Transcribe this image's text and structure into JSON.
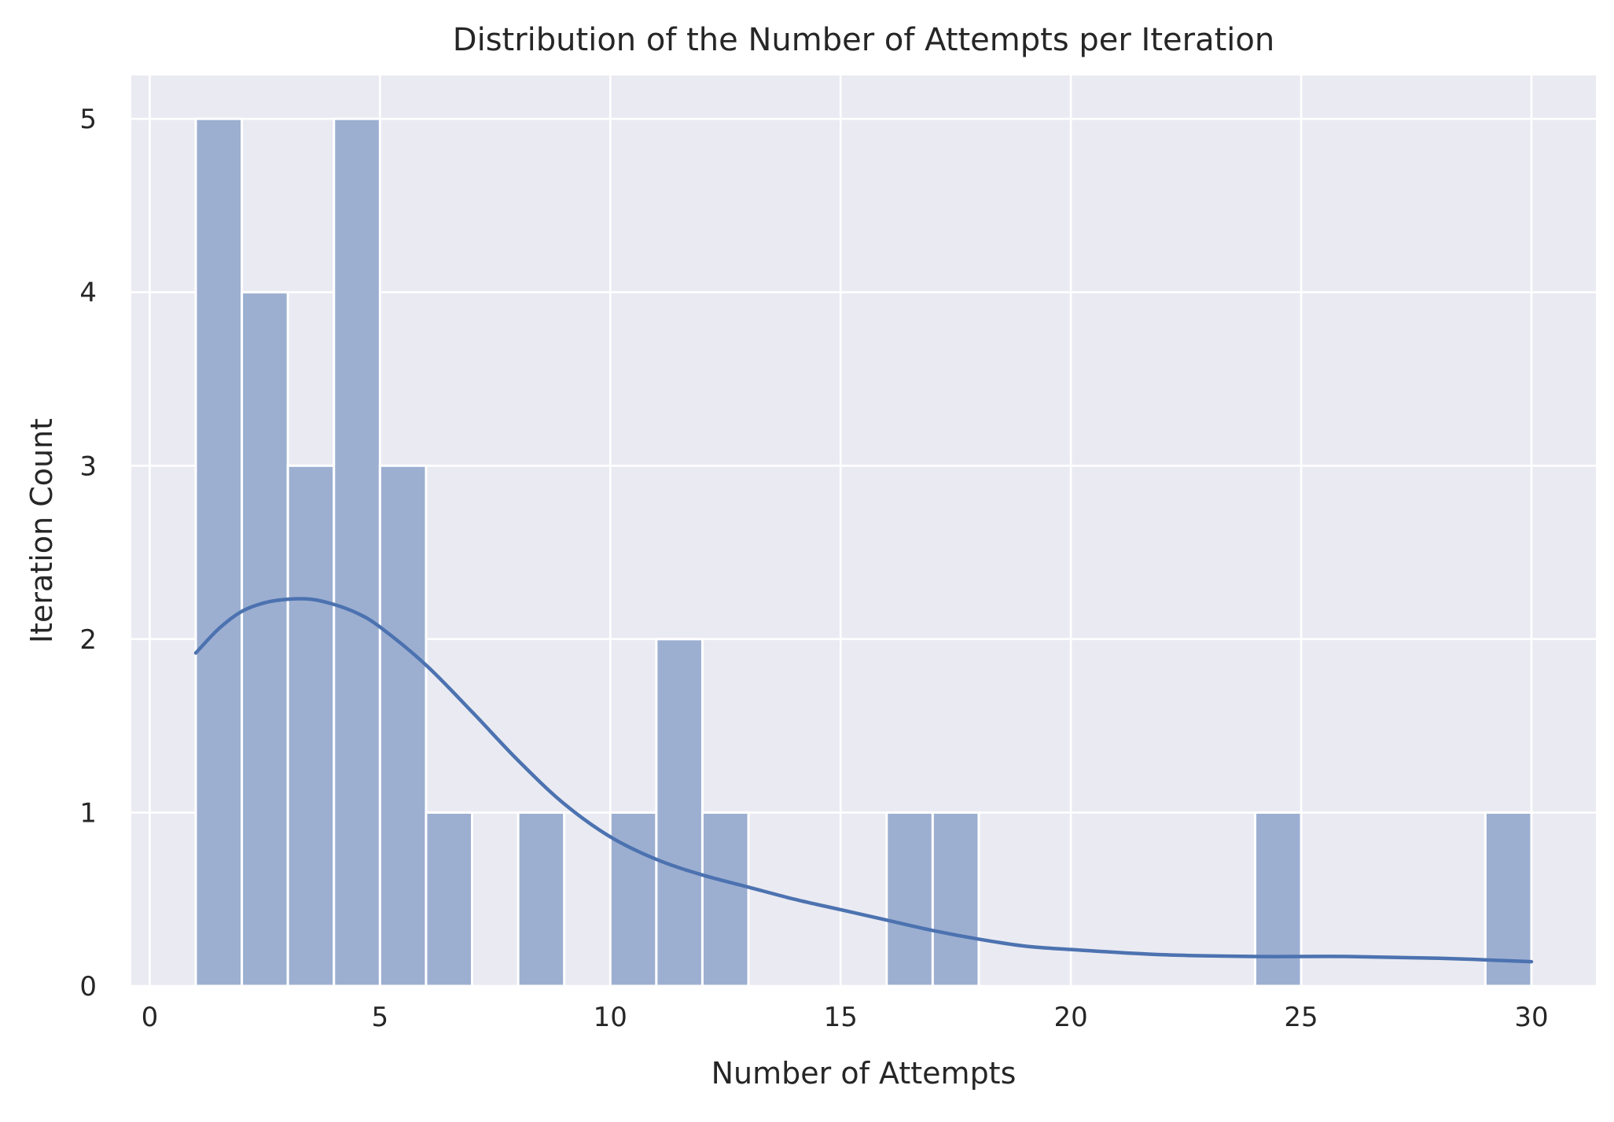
{
  "chart_data": {
    "type": "bar",
    "subtype": "histogram-with-kde",
    "title": "Distribution of the Number of Attempts per Iteration",
    "xlabel": "Number of Attempts",
    "ylabel": "Iteration Count",
    "xlim": [
      -0.4,
      31.4
    ],
    "ylim": [
      0,
      5.25
    ],
    "xticks": [
      0,
      5,
      10,
      15,
      20,
      25,
      30
    ],
    "yticks": [
      0,
      1,
      2,
      3,
      4,
      5
    ],
    "grid": true,
    "bins": [
      {
        "start": 1,
        "end": 2,
        "count": 5
      },
      {
        "start": 2,
        "end": 3,
        "count": 4
      },
      {
        "start": 3,
        "end": 4,
        "count": 3
      },
      {
        "start": 4,
        "end": 5,
        "count": 5
      },
      {
        "start": 5,
        "end": 6,
        "count": 3
      },
      {
        "start": 6,
        "end": 7,
        "count": 1
      },
      {
        "start": 8,
        "end": 9,
        "count": 1
      },
      {
        "start": 10,
        "end": 11,
        "count": 1
      },
      {
        "start": 11,
        "end": 12,
        "count": 2
      },
      {
        "start": 12,
        "end": 13,
        "count": 1
      },
      {
        "start": 16,
        "end": 17,
        "count": 1
      },
      {
        "start": 17,
        "end": 18,
        "count": 1
      },
      {
        "start": 24,
        "end": 25,
        "count": 1
      },
      {
        "start": 29,
        "end": 30,
        "count": 1
      }
    ],
    "kde": {
      "x": [
        1,
        1.5,
        2,
        2.5,
        3,
        3.5,
        4,
        4.5,
        5,
        6,
        7,
        8,
        9,
        10,
        11,
        12,
        13,
        14,
        15,
        16,
        17,
        18,
        19,
        20,
        22,
        24,
        26,
        28,
        30
      ],
      "y": [
        1.92,
        2.06,
        2.16,
        2.21,
        2.23,
        2.23,
        2.2,
        2.15,
        2.07,
        1.85,
        1.58,
        1.3,
        1.05,
        0.86,
        0.73,
        0.64,
        0.57,
        0.5,
        0.44,
        0.38,
        0.32,
        0.27,
        0.23,
        0.21,
        0.18,
        0.17,
        0.17,
        0.16,
        0.14
      ]
    },
    "colors": {
      "plot_background": "#eaeaf2",
      "grid": "#ffffff",
      "bar_fill": "#9cafd1",
      "bar_edge": "#ffffff",
      "kde_line": "#4c72b0",
      "text": "#262626"
    }
  }
}
